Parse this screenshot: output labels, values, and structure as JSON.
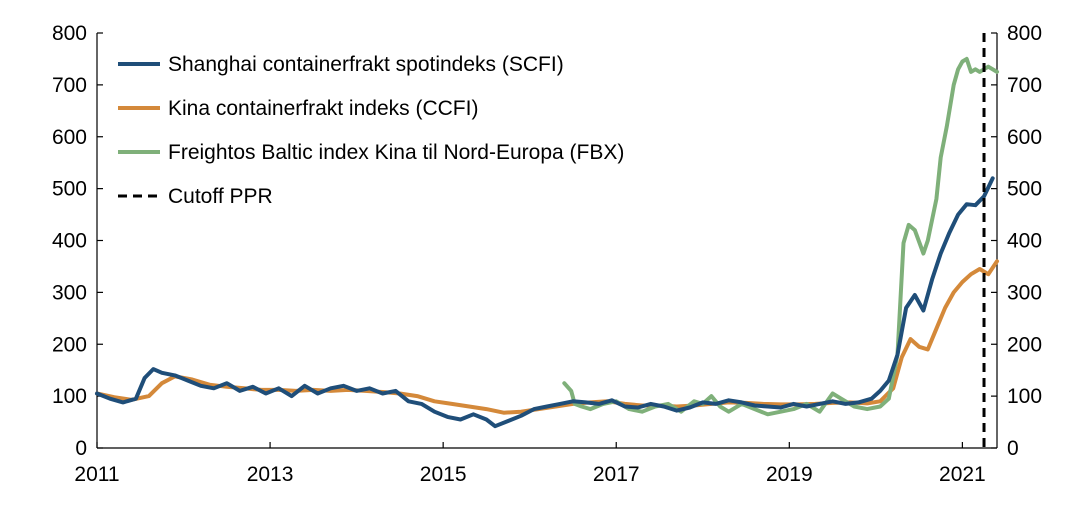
{
  "chart_data": {
    "type": "line",
    "title": "",
    "xlabel": "",
    "ylabel": "",
    "xlim": [
      2011.0,
      2021.4
    ],
    "ylim": [
      0,
      800
    ],
    "x_ticks": [
      2011,
      2013,
      2015,
      2017,
      2019,
      2021
    ],
    "x_tick_labels": [
      "2011",
      "2013",
      "2015",
      "2017",
      "2019",
      "2021"
    ],
    "y_ticks": [
      0,
      100,
      200,
      300,
      400,
      500,
      600,
      700,
      800
    ],
    "y_tick_labels": [
      "0",
      "100",
      "200",
      "300",
      "400",
      "500",
      "600",
      "700",
      "800"
    ],
    "right_axis_mirrors_left": true,
    "grid": false,
    "legend_position": "top-left",
    "series": [
      {
        "name": "Shanghai containerfrakt spotindeks (SCFI)",
        "color": "#1f4e79",
        "x": [
          2011.0,
          2011.15,
          2011.3,
          2011.45,
          2011.55,
          2011.65,
          2011.75,
          2011.9,
          2012.05,
          2012.2,
          2012.35,
          2012.5,
          2012.65,
          2012.8,
          2012.95,
          2013.1,
          2013.25,
          2013.4,
          2013.55,
          2013.7,
          2013.85,
          2014.0,
          2014.15,
          2014.3,
          2014.45,
          2014.6,
          2014.75,
          2014.9,
          2015.05,
          2015.2,
          2015.35,
          2015.5,
          2015.6,
          2015.75,
          2015.9,
          2016.05,
          2016.2,
          2016.35,
          2016.5,
          2016.65,
          2016.8,
          2016.95,
          2017.1,
          2017.25,
          2017.4,
          2017.55,
          2017.7,
          2017.85,
          2018.0,
          2018.15,
          2018.3,
          2018.45,
          2018.6,
          2018.75,
          2018.9,
          2019.05,
          2019.2,
          2019.35,
          2019.5,
          2019.65,
          2019.8,
          2019.95,
          2020.05,
          2020.15,
          2020.25,
          2020.35,
          2020.45,
          2020.55,
          2020.65,
          2020.75,
          2020.85,
          2020.95,
          2021.05,
          2021.15,
          2021.25,
          2021.35
        ],
        "y": [
          105,
          95,
          88,
          95,
          135,
          152,
          145,
          140,
          130,
          120,
          115,
          125,
          110,
          118,
          105,
          115,
          100,
          120,
          105,
          115,
          120,
          110,
          115,
          105,
          110,
          90,
          85,
          70,
          60,
          55,
          65,
          55,
          42,
          52,
          62,
          75,
          80,
          85,
          90,
          88,
          85,
          92,
          80,
          78,
          85,
          80,
          72,
          78,
          88,
          85,
          92,
          88,
          82,
          80,
          78,
          85,
          80,
          85,
          90,
          85,
          88,
          95,
          110,
          130,
          180,
          270,
          295,
          265,
          325,
          375,
          415,
          450,
          470,
          468,
          485,
          520
        ]
      },
      {
        "name": "Kina containerfrakt indeks (CCFI)",
        "color": "#d4893a",
        "x": [
          2011.0,
          2011.2,
          2011.4,
          2011.6,
          2011.75,
          2011.9,
          2012.1,
          2012.3,
          2012.5,
          2012.7,
          2012.9,
          2013.1,
          2013.3,
          2013.5,
          2013.7,
          2013.9,
          2014.1,
          2014.3,
          2014.5,
          2014.7,
          2014.9,
          2015.1,
          2015.3,
          2015.5,
          2015.7,
          2015.9,
          2016.1,
          2016.3,
          2016.5,
          2016.7,
          2016.9,
          2017.1,
          2017.3,
          2017.5,
          2017.7,
          2017.9,
          2018.1,
          2018.3,
          2018.5,
          2018.7,
          2018.9,
          2019.1,
          2019.3,
          2019.5,
          2019.7,
          2019.9,
          2020.05,
          2020.2,
          2020.3,
          2020.4,
          2020.5,
          2020.6,
          2020.7,
          2020.8,
          2020.9,
          2021.0,
          2021.1,
          2021.2,
          2021.3,
          2021.4
        ],
        "y": [
          105,
          98,
          93,
          100,
          125,
          138,
          132,
          122,
          118,
          115,
          112,
          112,
          110,
          112,
          110,
          112,
          110,
          108,
          105,
          100,
          90,
          85,
          80,
          75,
          68,
          70,
          75,
          80,
          85,
          88,
          90,
          85,
          82,
          82,
          80,
          82,
          85,
          88,
          87,
          85,
          84,
          84,
          85,
          87,
          88,
          86,
          90,
          115,
          175,
          210,
          195,
          190,
          230,
          270,
          300,
          320,
          335,
          345,
          335,
          360
        ]
      },
      {
        "name": "Freightos Baltic index Kina til Nord-Europa (FBX)",
        "color": "#7fb07a",
        "x": [
          2016.4,
          2016.48,
          2016.52,
          2016.6,
          2016.7,
          2016.85,
          2017.0,
          2017.15,
          2017.3,
          2017.45,
          2017.6,
          2017.75,
          2017.9,
          2018.0,
          2018.1,
          2018.2,
          2018.3,
          2018.45,
          2018.6,
          2018.75,
          2018.9,
          2019.05,
          2019.2,
          2019.35,
          2019.5,
          2019.6,
          2019.75,
          2019.9,
          2020.05,
          2020.15,
          2020.25,
          2020.32,
          2020.38,
          2020.45,
          2020.55,
          2020.6,
          2020.7,
          2020.75,
          2020.82,
          2020.9,
          2020.95,
          2021.0,
          2021.05,
          2021.1,
          2021.15,
          2021.2,
          2021.3,
          2021.4
        ],
        "y": [
          125,
          110,
          85,
          80,
          75,
          85,
          90,
          75,
          70,
          80,
          85,
          70,
          90,
          85,
          100,
          80,
          70,
          85,
          75,
          65,
          70,
          75,
          85,
          70,
          105,
          95,
          80,
          75,
          80,
          95,
          180,
          395,
          430,
          420,
          375,
          400,
          480,
          560,
          620,
          700,
          730,
          745,
          750,
          725,
          730,
          725,
          735,
          725
        ]
      }
    ],
    "reference_lines": [
      {
        "name": "Cutoff PPR",
        "axis": "x",
        "value": 2021.25,
        "color": "#000000",
        "style": "dashed"
      }
    ]
  }
}
